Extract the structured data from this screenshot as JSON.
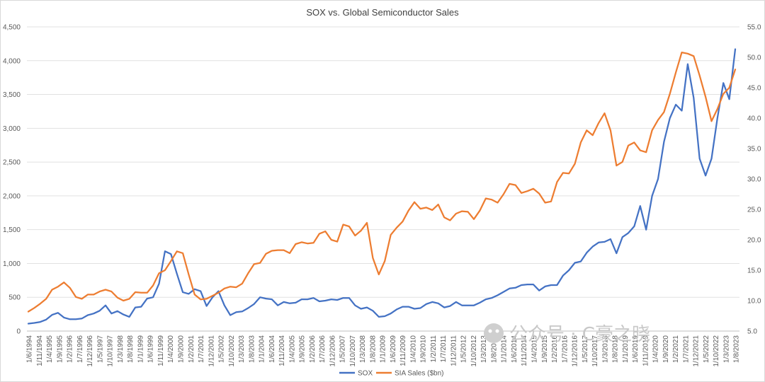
{
  "chart_data": {
    "type": "line",
    "title": "SOX vs. Global Semiconductor Sales",
    "y_left": {
      "lim": [
        0,
        4500
      ],
      "ticks": [
        "0",
        "500",
        "1,000",
        "1,500",
        "2,000",
        "2,500",
        "3,000",
        "3,500",
        "4,000",
        "4,500"
      ]
    },
    "y_right": {
      "lim": [
        5.0,
        55.0
      ],
      "ticks": [
        "5.0",
        "10.0",
        "15.0",
        "20.0",
        "25.0",
        "30.0",
        "35.0",
        "40.0",
        "45.0",
        "50.0",
        "55.0"
      ]
    },
    "x_tick_labels": [
      "1/6/1994",
      "1/11/1994",
      "1/4/1995",
      "1/9/1995",
      "1/2/1996",
      "1/7/1996",
      "1/12/1996",
      "1/5/1997",
      "1/10/1997",
      "1/3/1998",
      "1/8/1998",
      "1/1/1999",
      "1/6/1999",
      "1/11/1999",
      "1/4/2000",
      "1/9/2000",
      "1/2/2001",
      "1/7/2001",
      "1/12/2001",
      "1/5/2002",
      "1/10/2002",
      "1/3/2003",
      "1/8/2003",
      "1/1/2004",
      "1/6/2004",
      "1/11/2004",
      "1/4/2005",
      "1/9/2005",
      "1/2/2006",
      "1/7/2006",
      "1/12/2006",
      "1/5/2007",
      "1/10/2007",
      "1/3/2008",
      "1/8/2008",
      "1/1/2009",
      "1/6/2009",
      "1/11/2009",
      "1/4/2010",
      "1/9/2010",
      "1/2/2011",
      "1/7/2011",
      "1/12/2011",
      "1/5/2012",
      "1/10/2012",
      "1/3/2013",
      "1/8/2013",
      "1/1/2014",
      "1/6/2014",
      "1/11/2014",
      "1/4/2015",
      "1/9/2015",
      "1/2/2016",
      "1/7/2016",
      "1/12/2016",
      "1/5/2017",
      "1/10/2017",
      "1/3/2018",
      "1/8/2018",
      "1/1/2019",
      "1/6/2019",
      "1/11/2019",
      "1/4/2020",
      "1/9/2020",
      "1/2/2021",
      "1/7/2021",
      "1/12/2021",
      "1/5/2022",
      "1/10/2022",
      "1/3/2023",
      "1/8/2023"
    ],
    "series": [
      {
        "name": "SOX",
        "axis": "left",
        "color": "#4472c4",
        "values": [
          110,
          120,
          135,
          170,
          240,
          270,
          200,
          175,
          175,
          185,
          235,
          260,
          300,
          380,
          260,
          295,
          245,
          210,
          350,
          360,
          480,
          500,
          700,
          1180,
          1140,
          850,
          575,
          550,
          620,
          590,
          370,
          500,
          590,
          380,
          235,
          280,
          290,
          340,
          400,
          500,
          480,
          470,
          380,
          430,
          410,
          420,
          470,
          470,
          490,
          440,
          450,
          470,
          460,
          490,
          490,
          380,
          330,
          350,
          300,
          210,
          220,
          260,
          320,
          360,
          360,
          330,
          340,
          400,
          430,
          410,
          350,
          370,
          430,
          380,
          380,
          380,
          420,
          470,
          490,
          530,
          580,
          630,
          640,
          680,
          690,
          690,
          600,
          660,
          680,
          680,
          820,
          900,
          1010,
          1030,
          1160,
          1250,
          1310,
          1320,
          1360,
          1150,
          1390,
          1450,
          1550,
          1850,
          1500,
          2000,
          2250,
          2800,
          3150,
          3350,
          3260,
          3950,
          3450,
          2550,
          2300,
          2550,
          3150,
          3670,
          3430,
          4170
        ]
      },
      {
        "name": "SIA Sales ($bn)",
        "axis": "right",
        "color": "#ed7d31",
        "values": [
          8.2,
          8.8,
          9.5,
          10.3,
          11.8,
          12.3,
          13.0,
          12.1,
          10.6,
          10.3,
          11.0,
          11.0,
          11.5,
          11.8,
          11.5,
          10.5,
          10.0,
          10.3,
          11.4,
          11.3,
          11.3,
          12.5,
          14.5,
          15.0,
          16.5,
          18.1,
          17.8,
          14.3,
          11.0,
          10.2,
          10.3,
          10.8,
          11.3,
          12.0,
          12.3,
          12.2,
          12.8,
          14.5,
          16.0,
          16.2,
          17.7,
          18.2,
          18.3,
          18.3,
          17.8,
          19.3,
          19.6,
          19.4,
          19.5,
          21.0,
          21.4,
          20.0,
          19.7,
          22.5,
          22.2,
          20.7,
          21.5,
          22.8,
          17.0,
          14.3,
          16.5,
          20.8,
          22.0,
          23.0,
          24.8,
          26.2,
          25.1,
          25.3,
          24.9,
          25.8,
          23.7,
          23.2,
          24.3,
          24.7,
          24.6,
          23.4,
          24.8,
          26.8,
          26.6,
          26.1,
          27.5,
          29.2,
          29.0,
          27.7,
          28.0,
          28.4,
          27.6,
          26.1,
          26.3,
          29.5,
          31.0,
          30.9,
          32.5,
          36.0,
          38.0,
          37.2,
          39.2,
          40.8,
          38.0,
          32.2,
          32.8,
          35.5,
          36.0,
          34.7,
          34.4,
          38.0,
          39.7,
          41.0,
          44.0,
          47.5,
          50.8,
          50.6,
          50.2,
          47.0,
          43.5,
          39.5,
          41.5,
          44.0,
          45.0,
          48.0
        ]
      }
    ],
    "legend": {
      "position": "bottom",
      "entries": [
        "SOX",
        "SIA Sales ($bn)"
      ]
    },
    "grid": true
  },
  "watermark": {
    "text": "公众号 · C豪之晓"
  }
}
